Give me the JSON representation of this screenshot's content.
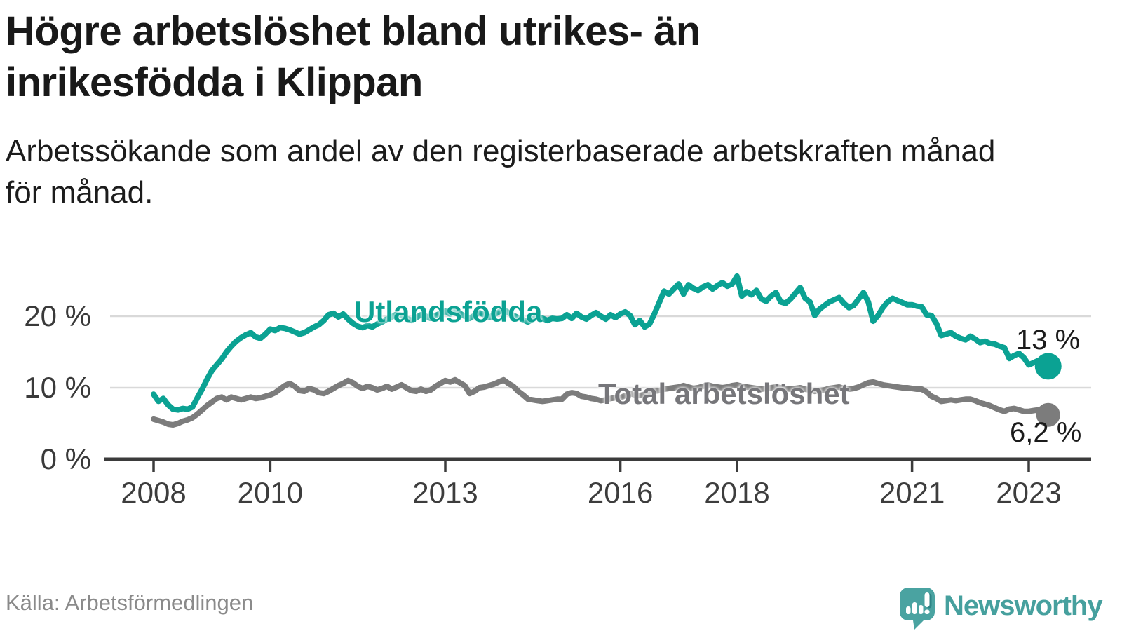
{
  "title": {
    "line1": "Högre arbetslöshet bland utrikes- än",
    "line2": "inrikesfödda i Klippan"
  },
  "subtitle": {
    "line1": "Arbetssökande som andel av den registerbaserade arbetskraften månad",
    "line2": "för månad."
  },
  "source": "Källa: Arbetsförmedlingen",
  "branding": {
    "name": "Newsworthy",
    "logo_color": "#4aa3a1",
    "logo_shadow_color": "#2e8486",
    "text_color": "#46a09e"
  },
  "chart_data": {
    "type": "line",
    "unit": "%",
    "x_start_year": 2008,
    "x_step_months": 1,
    "x_end": "2023-05",
    "ylim": [
      0,
      27
    ],
    "grid": "horizontal",
    "legend_position": "inline-labels",
    "colors": {
      "axis": "#3b3b3b",
      "grid": "#d9d9d9",
      "tick_text": "#3d3d3d"
    },
    "y_ticks": [
      {
        "value": 0,
        "label": "0 %"
      },
      {
        "value": 10,
        "label": "10 %"
      },
      {
        "value": 20,
        "label": "20 %"
      }
    ],
    "x_ticks": [
      {
        "year": 2008,
        "label": "2008"
      },
      {
        "year": 2010,
        "label": "2010"
      },
      {
        "year": 2013,
        "label": "2013"
      },
      {
        "year": 2016,
        "label": "2016"
      },
      {
        "year": 2018,
        "label": "2018"
      },
      {
        "year": 2021,
        "label": "2021"
      },
      {
        "year": 2023,
        "label": "2023"
      }
    ],
    "series": [
      {
        "name": "Utlandsfödda",
        "color": "#0ba293",
        "end_label": "13 %",
        "end_value": 13.0,
        "values": [
          9.1,
          8.1,
          8.5,
          7.6,
          7.0,
          6.9,
          7.1,
          7.0,
          7.3,
          8.6,
          9.8,
          11.2,
          12.4,
          13.2,
          14.0,
          15.0,
          15.8,
          16.5,
          17.0,
          17.4,
          17.7,
          17.1,
          16.9,
          17.5,
          18.2,
          18.0,
          18.4,
          18.3,
          18.1,
          17.8,
          17.5,
          17.7,
          18.1,
          18.5,
          18.8,
          19.4,
          20.2,
          20.4,
          19.9,
          20.3,
          19.6,
          19.0,
          18.6,
          18.4,
          18.7,
          18.5,
          18.9,
          19.2,
          19.6,
          19.9,
          20.3,
          20.1,
          19.7,
          19.4,
          19.8,
          20.2,
          20.0,
          19.7,
          20.1,
          20.4,
          20.7,
          20.3,
          20.8,
          20.4,
          20.0,
          19.7,
          20.1,
          20.5,
          20.2,
          19.8,
          20.2,
          20.6,
          20.9,
          20.5,
          20.1,
          19.8,
          19.5,
          19.2,
          19.6,
          19.9,
          19.7,
          19.4,
          19.7,
          19.6,
          19.7,
          20.2,
          19.7,
          20.4,
          19.9,
          19.6,
          20.1,
          20.5,
          20.0,
          19.6,
          20.2,
          19.8,
          20.3,
          20.6,
          20.1,
          18.8,
          19.4,
          18.5,
          18.9,
          20.3,
          21.9,
          23.5,
          23.1,
          23.8,
          24.5,
          23.1,
          24.4,
          23.9,
          23.6,
          24.1,
          24.4,
          23.8,
          24.3,
          24.7,
          24.2,
          24.5,
          25.6,
          22.8,
          23.4,
          23.0,
          23.6,
          22.4,
          22.1,
          22.8,
          23.3,
          22.0,
          21.8,
          22.4,
          23.2,
          24.0,
          22.5,
          22.0,
          20.1,
          21.0,
          21.5,
          22.0,
          22.3,
          22.6,
          21.8,
          21.2,
          21.5,
          22.4,
          23.3,
          22.0,
          19.3,
          20.1,
          21.2,
          22.0,
          22.5,
          22.2,
          21.9,
          21.6,
          21.6,
          21.4,
          21.3,
          20.2,
          20.1,
          19.0,
          17.3,
          17.5,
          17.7,
          17.2,
          16.9,
          16.7,
          17.2,
          16.8,
          16.3,
          16.5,
          16.2,
          16.1,
          15.8,
          15.6,
          14.1,
          14.5,
          14.8,
          14.2,
          13.2,
          13.5,
          13.8,
          13.4,
          13.0
        ]
      },
      {
        "name": "Total arbetslöshet",
        "color": "#7c7c7c",
        "end_label": "6,2 %",
        "end_value": 6.2,
        "values": [
          5.6,
          5.4,
          5.2,
          4.9,
          4.8,
          5.0,
          5.3,
          5.5,
          5.8,
          6.3,
          6.9,
          7.5,
          8.0,
          8.5,
          8.7,
          8.3,
          8.7,
          8.5,
          8.3,
          8.5,
          8.7,
          8.5,
          8.6,
          8.8,
          9.0,
          9.3,
          9.8,
          10.3,
          10.6,
          10.2,
          9.6,
          9.5,
          9.9,
          9.7,
          9.3,
          9.2,
          9.5,
          9.9,
          10.3,
          10.6,
          11.0,
          10.7,
          10.2,
          9.9,
          10.2,
          10.0,
          9.7,
          9.9,
          10.2,
          9.8,
          10.1,
          10.4,
          10.0,
          9.6,
          9.5,
          9.8,
          9.5,
          9.7,
          10.2,
          10.6,
          11.0,
          10.8,
          11.1,
          10.7,
          10.3,
          9.2,
          9.5,
          10.0,
          10.1,
          10.3,
          10.5,
          10.8,
          11.1,
          10.6,
          10.2,
          9.5,
          9.0,
          8.4,
          8.3,
          8.2,
          8.1,
          8.2,
          8.3,
          8.4,
          8.4,
          9.1,
          9.3,
          9.2,
          8.8,
          8.7,
          8.5,
          8.4,
          8.2,
          8.3,
          8.5,
          8.6,
          8.6,
          8.9,
          9.2,
          9.0,
          8.9,
          9.1,
          9.3,
          9.5,
          9.6,
          9.8,
          9.9,
          10.0,
          10.1,
          10.3,
          10.1,
          9.9,
          10.0,
          10.2,
          10.4,
          10.2,
          10.1,
          10.0,
          10.1,
          10.3,
          10.4,
          10.2,
          10.1,
          10.0,
          9.9,
          9.8,
          9.9,
          10.0,
          10.1,
          10.0,
          9.9,
          9.8,
          9.9,
          10.0,
          9.8,
          9.7,
          9.5,
          9.6,
          9.7,
          9.9,
          10.0,
          10.1,
          9.9,
          9.8,
          9.9,
          10.1,
          10.4,
          10.7,
          10.8,
          10.6,
          10.4,
          10.3,
          10.2,
          10.1,
          10.0,
          10.0,
          9.9,
          9.8,
          9.8,
          9.4,
          8.8,
          8.5,
          8.1,
          8.2,
          8.3,
          8.2,
          8.3,
          8.4,
          8.4,
          8.2,
          7.9,
          7.7,
          7.5,
          7.2,
          6.9,
          6.7,
          7.0,
          7.1,
          6.9,
          6.7,
          6.7,
          6.8,
          6.9,
          6.6,
          6.2
        ]
      }
    ]
  }
}
